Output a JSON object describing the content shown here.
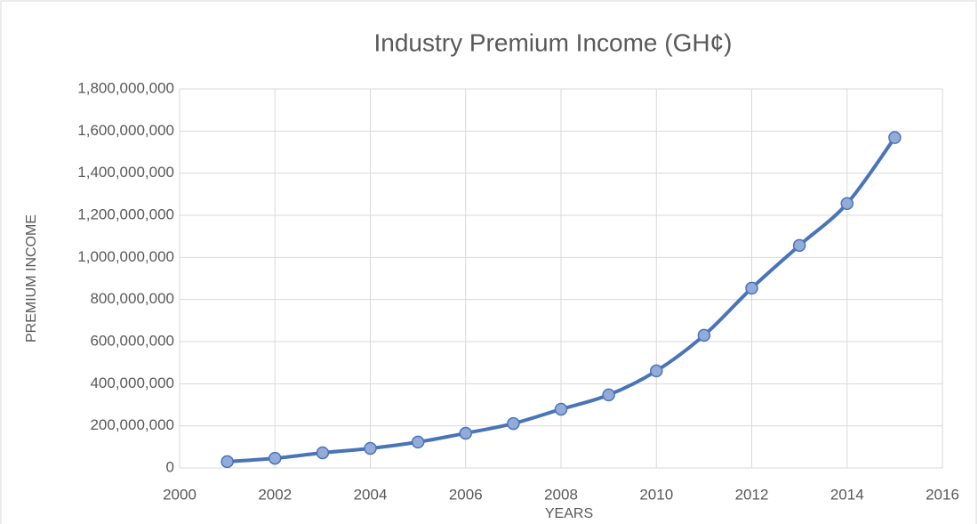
{
  "chart_data": {
    "type": "line",
    "title": "Industry Premium Income (GH¢)",
    "x_label": "YEARS",
    "y_label": "PREMIUM INCOME",
    "x": [
      2001,
      2002,
      2003,
      2004,
      2005,
      2006,
      2007,
      2008,
      2009,
      2010,
      2011,
      2012,
      2013,
      2014,
      2015
    ],
    "series": [
      {
        "name": "Premium Income",
        "color": "#4a74b8",
        "marker_color": "#93abd8",
        "values": [
          30000000,
          46000000,
          72000000,
          93000000,
          123000000,
          165000000,
          211000000,
          279000000,
          347000000,
          461000000,
          630000000,
          854000000,
          1057000000,
          1256000000,
          1569000000
        ]
      }
    ],
    "xlim": [
      2000,
      2016
    ],
    "xticks": [
      2000,
      2002,
      2004,
      2006,
      2008,
      2010,
      2012,
      2014,
      2016
    ],
    "ylim": [
      0,
      1800000000
    ],
    "yticks": [
      0,
      {
        "value": 200000000,
        "label": "200,000,000"
      },
      {
        "value": 400000000,
        "label": "400,000,000"
      },
      {
        "value": 600000000,
        "label": "600,000,000"
      },
      {
        "value": 800000000,
        "label": "800,000,000"
      },
      {
        "value": 1000000000,
        "label": "1,000,000,000"
      },
      {
        "value": 1200000000,
        "label": "1,200,000,000"
      },
      {
        "value": 1400000000,
        "label": "1,400,000,000"
      },
      {
        "value": 1600000000,
        "label": "1,600,000,000"
      },
      {
        "value": 1800000000,
        "label": "1,800,000,000"
      }
    ],
    "grid": true,
    "smooth": true
  }
}
